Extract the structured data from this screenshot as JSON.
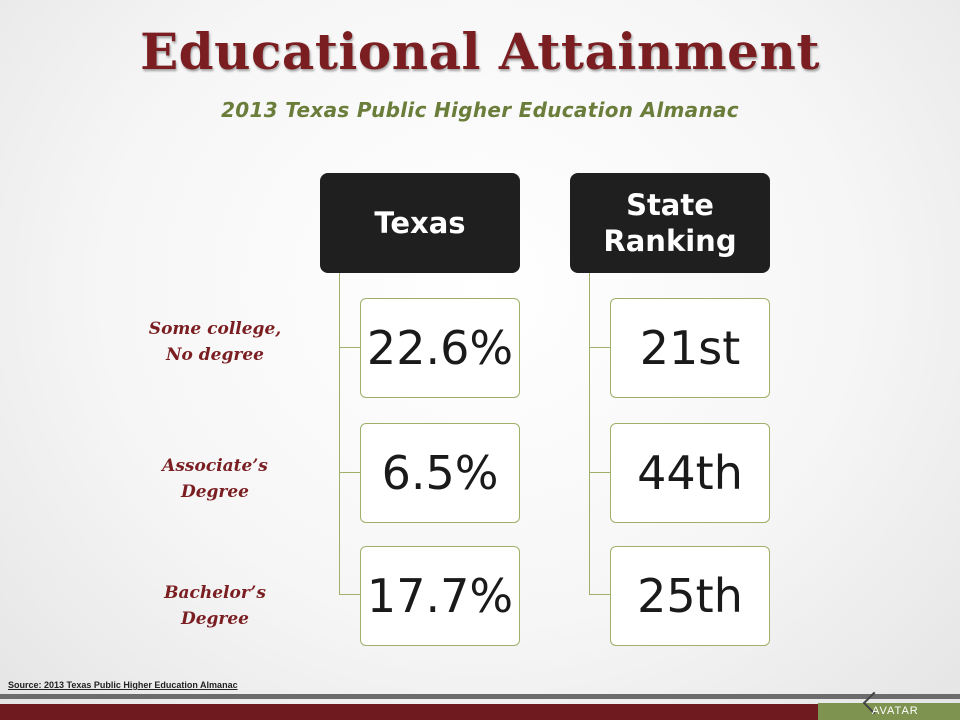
{
  "header": {
    "title": "Educational Attainment",
    "subtitle": "2013 Texas Public Higher Education Almanac"
  },
  "rows": [
    {
      "label_line1": "Some college,",
      "label_line2": "No degree"
    },
    {
      "label_line1": "Associate’s",
      "label_line2": "Degree"
    },
    {
      "label_line1": "Bachelor’s",
      "label_line2": "Degree"
    }
  ],
  "columns": [
    {
      "heading": "Texas",
      "values": [
        "22.6%",
        "6.5%",
        "17.7%"
      ]
    },
    {
      "heading_line1": "State",
      "heading_line2": "Ranking",
      "values": [
        "21st",
        "44th",
        "25th"
      ]
    }
  ],
  "footer": {
    "source": "Source: 2013 Texas Public Higher Education Almanac",
    "logo_text": "AVATAR"
  },
  "colors": {
    "title": "#7a1e22",
    "subtitle": "#6b7d3a",
    "header_box": "#1f1f1f",
    "accent_line": "#9eb069",
    "footer_bar": "#6e1a1e"
  }
}
